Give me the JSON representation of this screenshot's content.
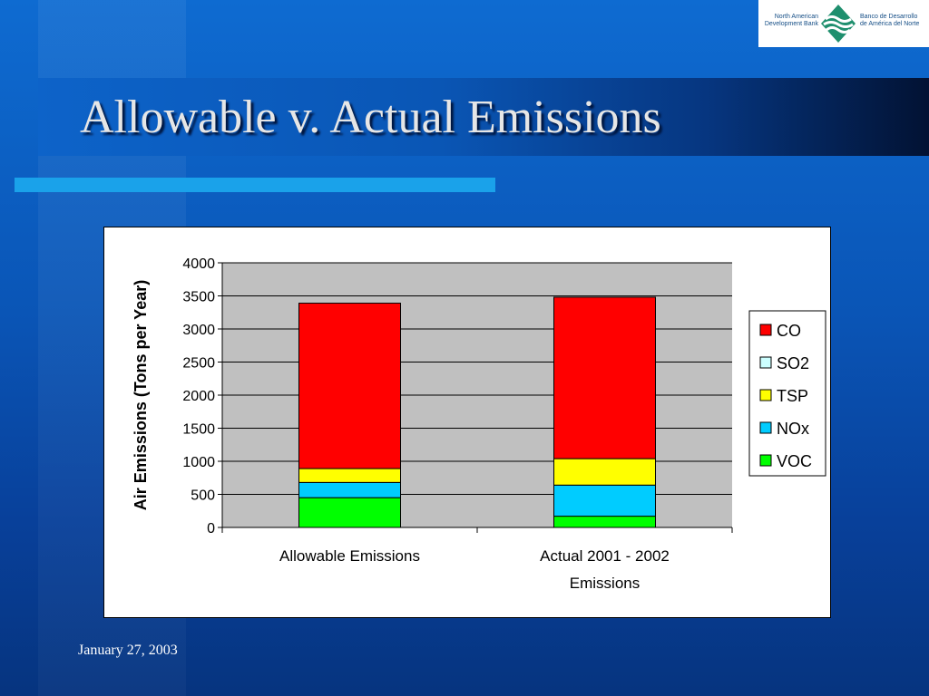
{
  "slide": {
    "title": "Allowable v. Actual Emissions",
    "footer_date": "January 27, 2003",
    "background_color": "#0a56b5",
    "accent_color": "#1aa2ea"
  },
  "logo": {
    "left_text_line1": "North American",
    "left_text_line2": "Development Bank",
    "right_text_line1": "Banco de Desarrollo",
    "right_text_line2": "de América del Norte",
    "icon": "nadbank-diamond-logo-icon"
  },
  "chart_data": {
    "type": "bar",
    "stacked": true,
    "categories": [
      "Allowable Emissions",
      "Actual 2001 - 2002 Emissions"
    ],
    "series": [
      {
        "name": "VOC",
        "color": "#00ff00",
        "values": [
          450,
          170
        ]
      },
      {
        "name": "NOx",
        "color": "#00ccff",
        "values": [
          230,
          470
        ]
      },
      {
        "name": "TSP",
        "color": "#ffff00",
        "values": [
          210,
          400
        ]
      },
      {
        "name": "SO2",
        "color": "#ccffff",
        "values": [
          0,
          0
        ]
      },
      {
        "name": "CO",
        "color": "#ff0000",
        "values": [
          2500,
          2440
        ]
      }
    ],
    "ylabel": "Air Emissions (Tons per Year)",
    "xlabel": "",
    "ylim": [
      0,
      4000
    ],
    "yticks": [
      0,
      500,
      1000,
      1500,
      2000,
      2500,
      3000,
      3500,
      4000
    ],
    "grid": true,
    "plot_background": "#c0c0c0",
    "legend_position": "right",
    "legend_order": [
      "CO",
      "SO2",
      "TSP",
      "NOx",
      "VOC"
    ]
  }
}
